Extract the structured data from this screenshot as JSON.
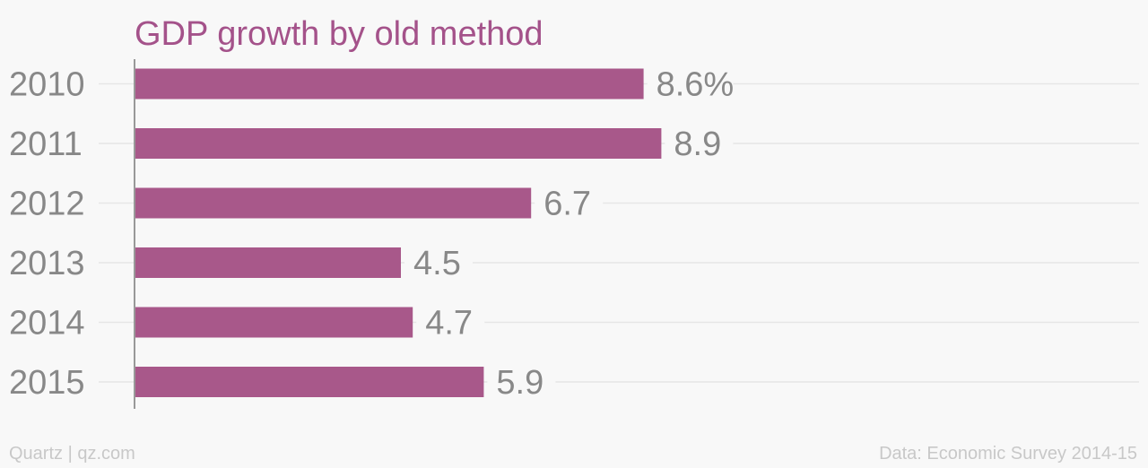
{
  "chart_data": {
    "type": "bar",
    "orientation": "horizontal",
    "title": "GDP growth by old method",
    "categories": [
      "2010",
      "2011",
      "2012",
      "2013",
      "2014",
      "2015"
    ],
    "values": [
      8.6,
      8.9,
      6.7,
      4.5,
      4.7,
      5.9
    ],
    "value_labels": [
      "8.6%",
      "8.9",
      "6.7",
      "4.5",
      "4.7",
      "5.9"
    ],
    "xlim": [
      0,
      17
    ],
    "grid": true,
    "colors": {
      "bar": "#a8588a",
      "title": "#a4528a",
      "label": "#888888",
      "grid": "#e6e6e6",
      "axis": "#999999",
      "footer": "#c8c8c8"
    }
  },
  "footer": {
    "credit": "Quartz | qz.com",
    "source": "Data: Economic Survey 2014-15"
  }
}
